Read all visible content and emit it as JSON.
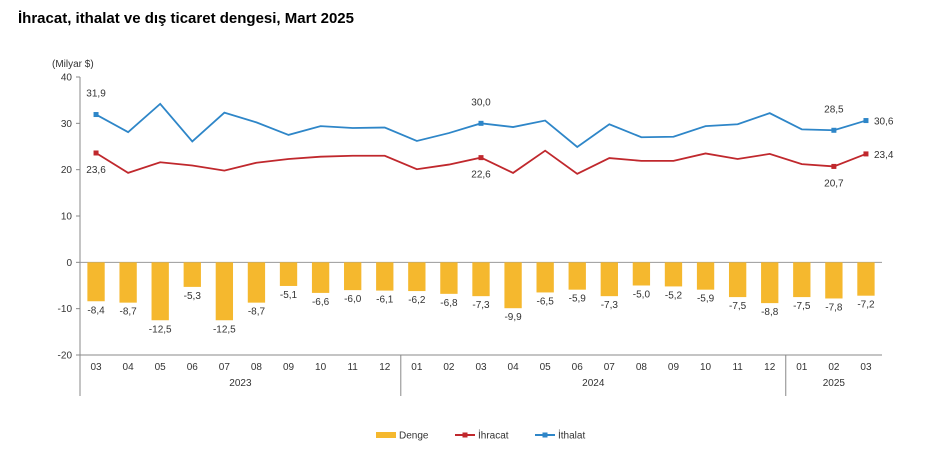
{
  "title": "İhracat, ithalat ve dış ticaret dengesi, Mart 2025",
  "chart_data": {
    "type": "bar+line",
    "unit_label": "(Milyar $)",
    "categories": [
      "03",
      "04",
      "05",
      "06",
      "07",
      "08",
      "09",
      "10",
      "11",
      "12",
      "01",
      "02",
      "03",
      "04",
      "05",
      "06",
      "07",
      "08",
      "09",
      "10",
      "11",
      "12",
      "01",
      "02",
      "03"
    ],
    "year_groups": [
      {
        "label": "2023",
        "start": 0,
        "end": 9
      },
      {
        "label": "2024",
        "start": 10,
        "end": 21
      },
      {
        "label": "2025",
        "start": 22,
        "end": 24
      }
    ],
    "ylim": [
      -20,
      40
    ],
    "yticks": [
      -20,
      -10,
      0,
      10,
      20,
      30,
      40
    ],
    "series": [
      {
        "name": "Denge",
        "kind": "bar",
        "color": "#F5B82E",
        "values": [
          -8.4,
          -8.7,
          -12.5,
          -5.3,
          -12.5,
          -8.7,
          -5.1,
          -6.6,
          -6.0,
          -6.1,
          -6.2,
          -6.8,
          -7.3,
          -9.9,
          -6.5,
          -5.9,
          -7.3,
          -5.0,
          -5.2,
          -5.9,
          -7.5,
          -8.8,
          -7.5,
          -7.8,
          -7.2
        ],
        "value_labels": [
          "-8,4",
          "-8,7",
          "-12,5",
          "-5,3",
          "-12,5",
          "-8,7",
          "-5,1",
          "-6,6",
          "-6,0",
          "-6,1",
          "-6,2",
          "-6,8",
          "-7,3",
          "-9,9",
          "-6,5",
          "-5,9",
          "-7,3",
          "-5,0",
          "-5,2",
          "-5,9",
          "-7,5",
          "-8,8",
          "-7,5",
          "-7,8",
          "-7,2"
        ]
      },
      {
        "name": "İhracat",
        "kind": "line",
        "color": "#C0282D",
        "values": [
          23.6,
          19.3,
          21.6,
          20.9,
          19.8,
          21.5,
          22.3,
          22.8,
          23.0,
          23.0,
          20.1,
          21.1,
          22.6,
          19.3,
          24.1,
          19.1,
          22.5,
          21.9,
          21.9,
          23.5,
          22.3,
          23.4,
          21.2,
          20.7,
          23.4
        ],
        "labeled": [
          {
            "index": 0,
            "text": "23,6"
          },
          {
            "index": 12,
            "text": "22,6"
          },
          {
            "index": 23,
            "text": "20,7"
          },
          {
            "index": 24,
            "text": "23,4"
          }
        ]
      },
      {
        "name": "İthalat",
        "kind": "line",
        "color": "#2E86C8",
        "values": [
          31.9,
          28.1,
          34.2,
          26.1,
          32.3,
          30.2,
          27.5,
          29.4,
          29.0,
          29.1,
          26.2,
          27.9,
          30.0,
          29.2,
          30.6,
          24.9,
          29.8,
          27.0,
          27.1,
          29.4,
          29.8,
          32.2,
          28.7,
          28.5,
          30.6
        ],
        "labeled": [
          {
            "index": 0,
            "text": "31,9"
          },
          {
            "index": 12,
            "text": "30,0"
          },
          {
            "index": 23,
            "text": "28,5"
          },
          {
            "index": 24,
            "text": "30,6"
          }
        ]
      }
    ],
    "grid": false,
    "legend": "bottom-center"
  }
}
